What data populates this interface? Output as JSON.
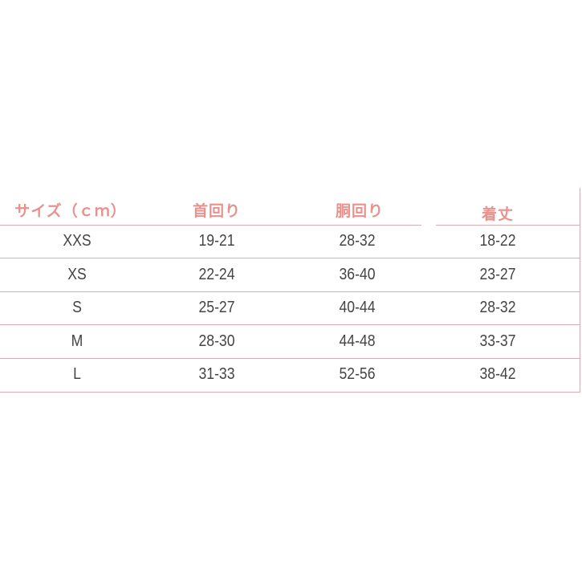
{
  "table": {
    "headers": [
      "サイズ（ｃｍ）",
      "首回り",
      "胴回り",
      "着丈"
    ],
    "rows": [
      [
        "XXS",
        "19-21",
        "28-32",
        "18-22"
      ],
      [
        "XS",
        "22-24",
        "36-40",
        "23-27"
      ],
      [
        "S",
        "25-27",
        "40-44",
        "28-32"
      ],
      [
        "M",
        "28-30",
        "44-48",
        "33-37"
      ],
      [
        "L",
        "31-33",
        "52-56",
        "38-42"
      ]
    ]
  },
  "colors": {
    "header": "#e8918d",
    "text": "#444444",
    "border": "#d9aeb0"
  }
}
